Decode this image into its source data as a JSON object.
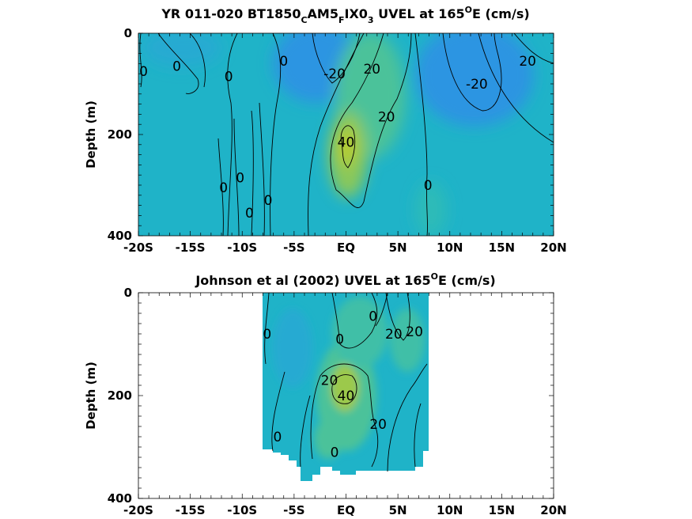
{
  "figure": {
    "colors": {
      "low": "#2f8fe6",
      "background_mid": "#1fb3c8",
      "positive_mid": "#4cc29a",
      "high": "#b8cc2a",
      "contour_line": "#000000"
    }
  },
  "chart_data": [
    {
      "type": "contour",
      "title_main": "YR 011-020 BT1850",
      "title_sub1": "C",
      "title_mid": "AM5",
      "title_sub2": "F",
      "title_mid2": "IX0",
      "title_sub3": "3",
      "title_tail": " UVEL at 165",
      "title_sup": "O",
      "title_end": "E (cm/s)",
      "xlabel": "",
      "ylabel": "Depth (m)",
      "xlim": [
        -20,
        20
      ],
      "ylim": [
        0,
        400
      ],
      "y_reversed": true,
      "x_ticks": [
        {
          "value": -20,
          "label": "-20S"
        },
        {
          "value": -15,
          "label": "-15S"
        },
        {
          "value": -10,
          "label": "-10S"
        },
        {
          "value": -5,
          "label": "-5S"
        },
        {
          "value": 0,
          "label": "EQ"
        },
        {
          "value": 5,
          "label": "5N"
        },
        {
          "value": 10,
          "label": "10N"
        },
        {
          "value": 15,
          "label": "15N"
        },
        {
          "value": 20,
          "label": "20N"
        }
      ],
      "y_ticks": [
        0,
        200,
        400
      ],
      "contour_levels": [
        -20,
        0,
        20,
        40
      ],
      "contour_labels": [
        {
          "lat": -19.5,
          "depth": 75,
          "text": "0"
        },
        {
          "lat": -16.3,
          "depth": 65,
          "text": "0"
        },
        {
          "lat": -11.3,
          "depth": 85,
          "text": "0"
        },
        {
          "lat": -6,
          "depth": 55,
          "text": "0"
        },
        {
          "lat": -1.1,
          "depth": 80,
          "text": "-20"
        },
        {
          "lat": 2.5,
          "depth": 70,
          "text": "20"
        },
        {
          "lat": 12.6,
          "depth": 100,
          "text": "-20"
        },
        {
          "lat": 17.5,
          "depth": 55,
          "text": "20"
        },
        {
          "lat": 3.9,
          "depth": 165,
          "text": "20"
        },
        {
          "lat": 0,
          "depth": 215,
          "text": "40"
        },
        {
          "lat": 7.9,
          "depth": 300,
          "text": "0"
        },
        {
          "lat": -10.2,
          "depth": 285,
          "text": "0"
        },
        {
          "lat": -11.8,
          "depth": 305,
          "text": "0"
        },
        {
          "lat": -9.3,
          "depth": 355,
          "text": "0"
        },
        {
          "lat": -7.5,
          "depth": 330,
          "text": "0"
        }
      ]
    },
    {
      "type": "contour",
      "title_main": "Johnson et al (2002) UVEL at 165",
      "title_sup": "O",
      "title_end": "E (cm/s)",
      "xlabel": "",
      "ylabel": "Depth (m)",
      "xlim": [
        -20,
        20
      ],
      "ylim": [
        0,
        400
      ],
      "y_reversed": true,
      "data_extent_lat": [
        -8,
        8
      ],
      "x_ticks": [
        {
          "value": -20,
          "label": "-20S"
        },
        {
          "value": -15,
          "label": "-15S"
        },
        {
          "value": -10,
          "label": "-10S"
        },
        {
          "value": -5,
          "label": "-5S"
        },
        {
          "value": 0,
          "label": "EQ"
        },
        {
          "value": 5,
          "label": "5N"
        },
        {
          "value": 10,
          "label": "10N"
        },
        {
          "value": 15,
          "label": "15N"
        },
        {
          "value": 20,
          "label": "20N"
        }
      ],
      "y_ticks": [
        0,
        200,
        400
      ],
      "contour_levels": [
        0,
        20,
        40
      ],
      "contour_labels": [
        {
          "lat": -7.6,
          "depth": 80,
          "text": "0"
        },
        {
          "lat": -0.6,
          "depth": 90,
          "text": "0"
        },
        {
          "lat": 2.6,
          "depth": 45,
          "text": "0"
        },
        {
          "lat": 4.6,
          "depth": 80,
          "text": "20"
        },
        {
          "lat": 6.6,
          "depth": 75,
          "text": "20"
        },
        {
          "lat": -1.6,
          "depth": 170,
          "text": "20"
        },
        {
          "lat": 0,
          "depth": 200,
          "text": "40"
        },
        {
          "lat": 3.1,
          "depth": 255,
          "text": "20"
        },
        {
          "lat": -6.6,
          "depth": 280,
          "text": "0"
        },
        {
          "lat": -1.1,
          "depth": 310,
          "text": "0"
        }
      ]
    }
  ]
}
